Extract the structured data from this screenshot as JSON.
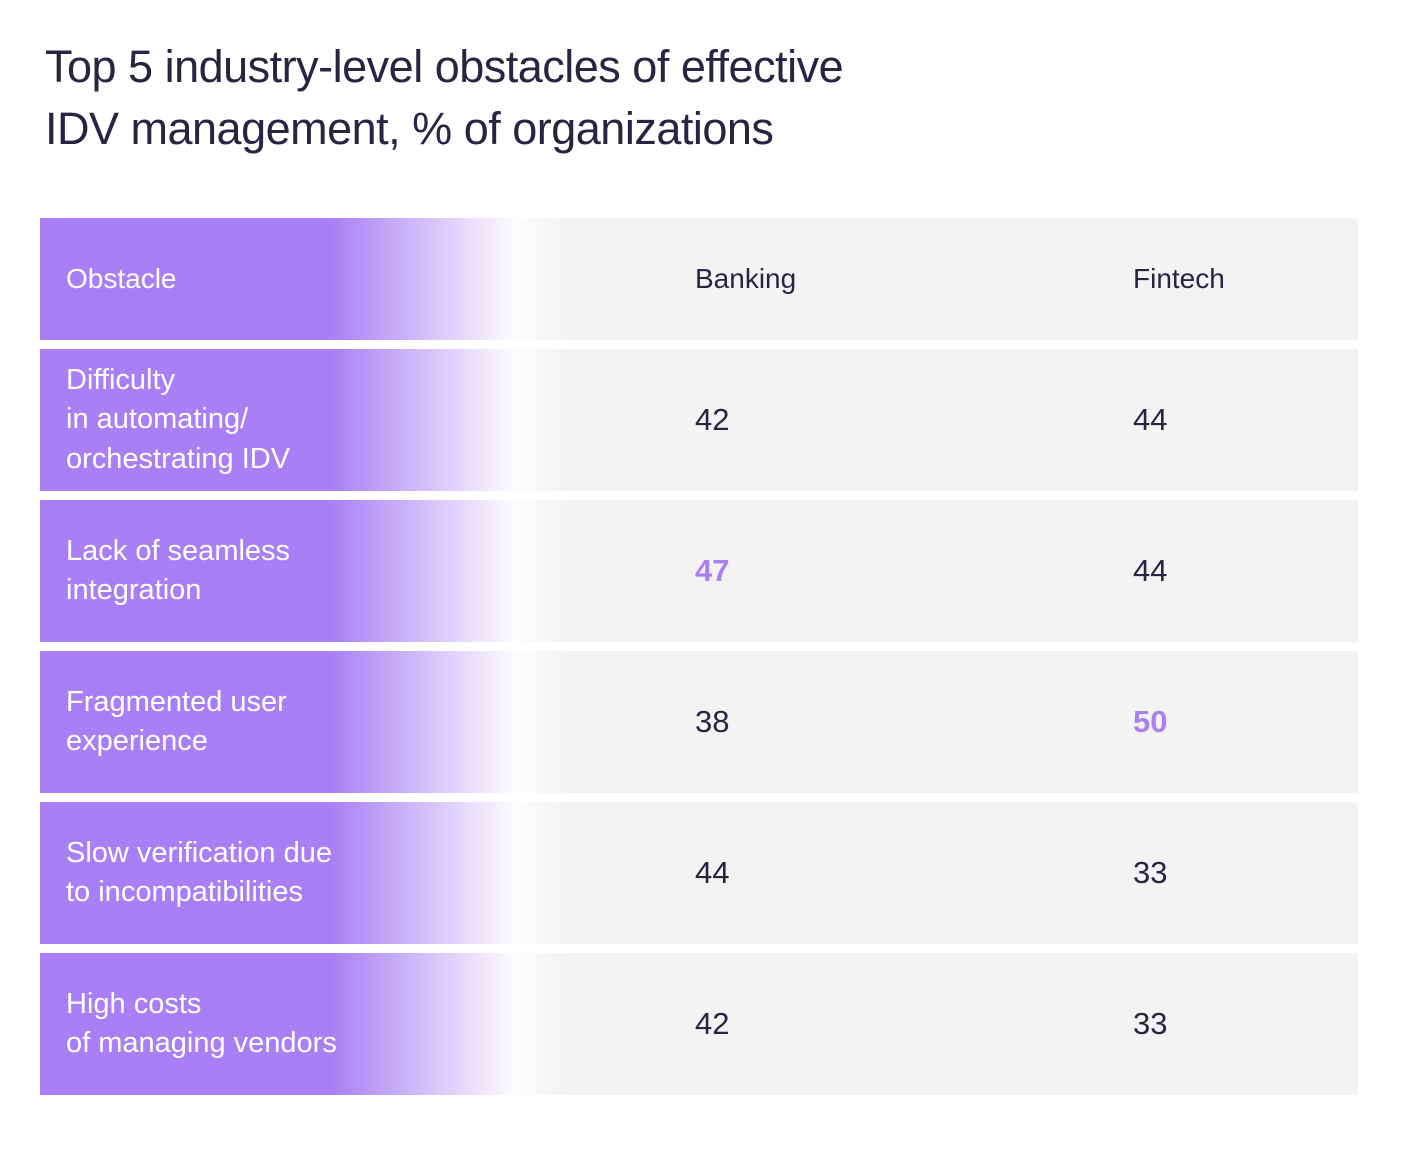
{
  "title": "Top 5 industry-level obstacles of effective\nIDV management, % of organizations",
  "colors": {
    "accent_purple": "#a87ff5",
    "row_background": "#f3f3f3",
    "dark_text": "#2a2342",
    "highlight_value": "#ad80f2",
    "obstacle_text": "#ffffff"
  },
  "table": {
    "columns": [
      "Obstacle",
      "Banking",
      "Fintech"
    ],
    "rows": [
      {
        "obstacle": "Difficulty\nin automating/\norchestrating IDV",
        "banking": "42",
        "fintech": "44",
        "highlight": null
      },
      {
        "obstacle": "Lack of seamless\nintegration",
        "banking": "47",
        "fintech": "44",
        "highlight": "banking"
      },
      {
        "obstacle": "Fragmented user\nexperience",
        "banking": "38",
        "fintech": "50",
        "highlight": "fintech"
      },
      {
        "obstacle": "Slow verification due\nto incompatibilities",
        "banking": "44",
        "fintech": "33",
        "highlight": null
      },
      {
        "obstacle": "High costs\nof managing vendors",
        "banking": "42",
        "fintech": "33",
        "highlight": null
      }
    ]
  },
  "chart_data": {
    "type": "table",
    "title": "Top 5 industry-level obstacles of effective IDV management, % of organizations",
    "categories": [
      "Difficulty in automating/orchestrating IDV",
      "Lack of seamless integration",
      "Fragmented user experience",
      "Slow verification due to incompatibilities",
      "High costs of managing vendors"
    ],
    "series": [
      {
        "name": "Banking",
        "values": [
          42,
          47,
          38,
          44,
          42
        ]
      },
      {
        "name": "Fintech",
        "values": [
          44,
          44,
          50,
          33,
          33
        ]
      }
    ],
    "highlighted_cells": [
      {
        "category": "Lack of seamless integration",
        "series": "Banking",
        "value": 47
      },
      {
        "category": "Fragmented user experience",
        "series": "Fintech",
        "value": 50
      }
    ],
    "units": "% of organizations"
  }
}
